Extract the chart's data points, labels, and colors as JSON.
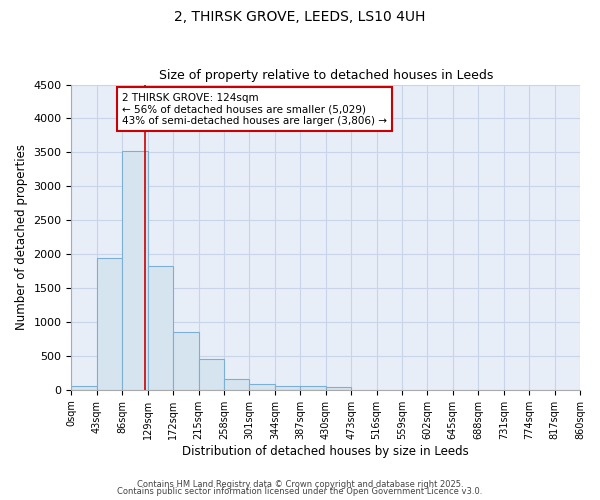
{
  "title1": "2, THIRSK GROVE, LEEDS, LS10 4UH",
  "title2": "Size of property relative to detached houses in Leeds",
  "xlabel": "Distribution of detached houses by size in Leeds",
  "ylabel": "Number of detached properties",
  "bin_edges": [
    0,
    43,
    86,
    129,
    172,
    215,
    258,
    301,
    344,
    387,
    430,
    473,
    516,
    559,
    602,
    645,
    688,
    731,
    774,
    817,
    860
  ],
  "bar_heights": [
    50,
    1950,
    3520,
    1820,
    850,
    450,
    160,
    90,
    60,
    50,
    45,
    0,
    0,
    0,
    0,
    0,
    0,
    0,
    0,
    0
  ],
  "bar_color": "#d6e4f0",
  "bar_edgecolor": "#7bafd4",
  "property_line_x": 124,
  "property_line_color": "#cc0000",
  "annotation_text": "2 THIRSK GROVE: 124sqm\n← 56% of detached houses are smaller (5,029)\n43% of semi-detached houses are larger (3,806) →",
  "annotation_box_edgecolor": "#cc0000",
  "annotation_box_facecolor": "#ffffff",
  "ylim": [
    0,
    4500
  ],
  "yticks": [
    0,
    500,
    1000,
    1500,
    2000,
    2500,
    3000,
    3500,
    4000,
    4500
  ],
  "tick_labels": [
    "0sqm",
    "43sqm",
    "86sqm",
    "129sqm",
    "172sqm",
    "215sqm",
    "258sqm",
    "301sqm",
    "344sqm",
    "387sqm",
    "430sqm",
    "473sqm",
    "516sqm",
    "559sqm",
    "602sqm",
    "645sqm",
    "688sqm",
    "731sqm",
    "774sqm",
    "817sqm",
    "860sqm"
  ],
  "grid_color": "#c8d4e8",
  "background_color": "#e8eef8",
  "fig_background": "#ffffff",
  "footer1": "Contains HM Land Registry data © Crown copyright and database right 2025.",
  "footer2": "Contains public sector information licensed under the Open Government Licence v3.0."
}
